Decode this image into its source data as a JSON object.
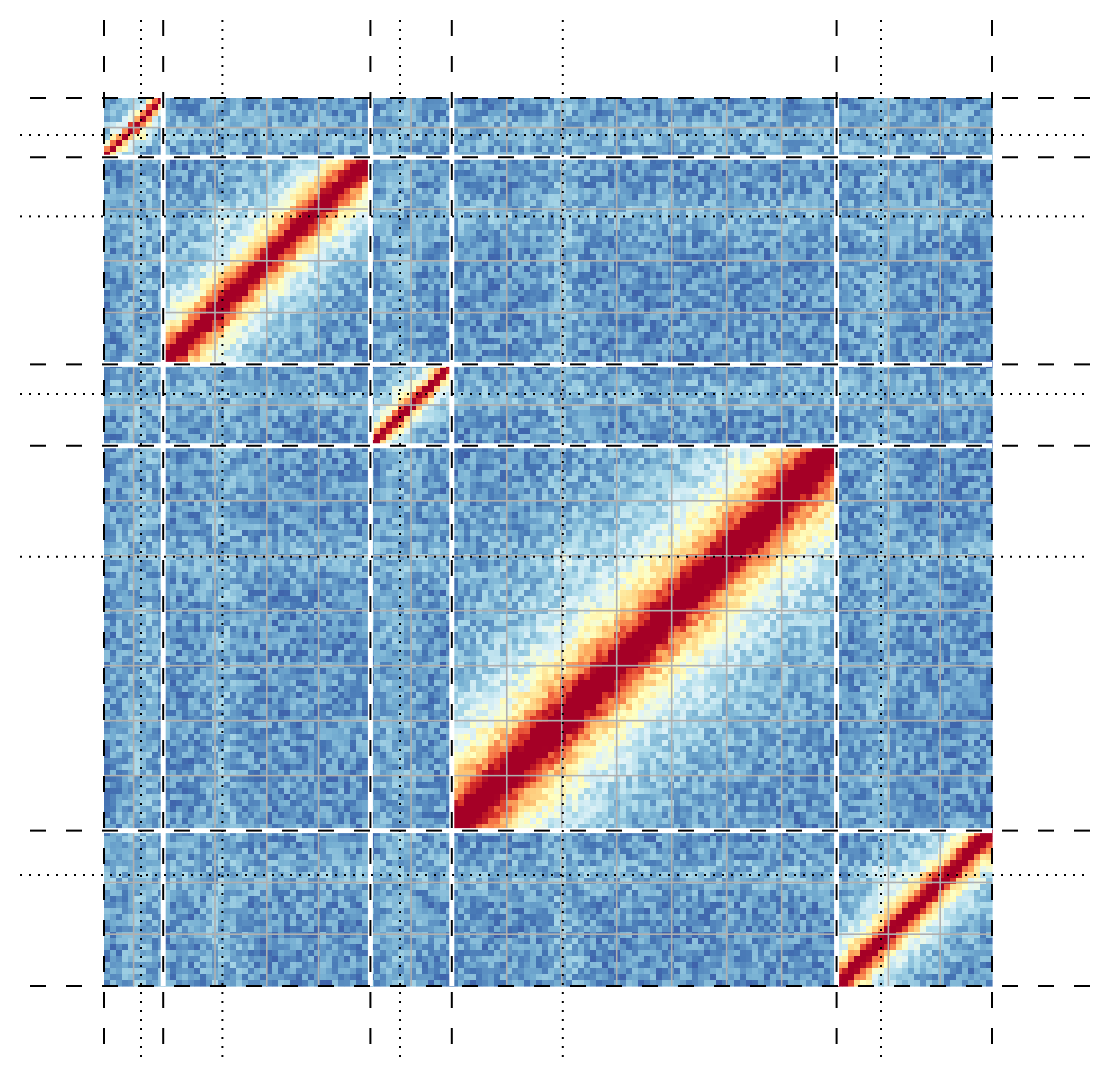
{
  "chart_data": {
    "type": "heatmap",
    "title": "",
    "xlabel": "",
    "ylabel": "",
    "description": "",
    "colormap": [
      "#313695",
      "#4575b4",
      "#74add1",
      "#abd9e9",
      "#e0f3f8",
      "#ffffbf",
      "#fee090",
      "#fdae61",
      "#f46d43",
      "#d73027",
      "#a50026"
    ],
    "colormap_name": "RdYlBu_r",
    "ticks": "none",
    "axis_range": [
      0,
      120
    ],
    "blocks": [
      {
        "start": 0,
        "end": 8,
        "diagonal_orientation": "flipped"
      },
      {
        "start": 8,
        "end": 36,
        "diagonal_orientation": "flipped"
      },
      {
        "start": 36,
        "end": 47,
        "diagonal_orientation": "flipped"
      },
      {
        "start": 47,
        "end": 99,
        "diagonal_orientation": "flipped"
      },
      {
        "start": 99,
        "end": 120,
        "diagonal_orientation": "flipped"
      }
    ],
    "hotspot_positions": [
      5,
      16,
      40,
      62,
      105
    ],
    "grid_line_color": "#b0b0b0",
    "divider_line_color": "#ffffff",
    "dashed_line_color": "#000000",
    "dotted_line_color": "#000000"
  }
}
